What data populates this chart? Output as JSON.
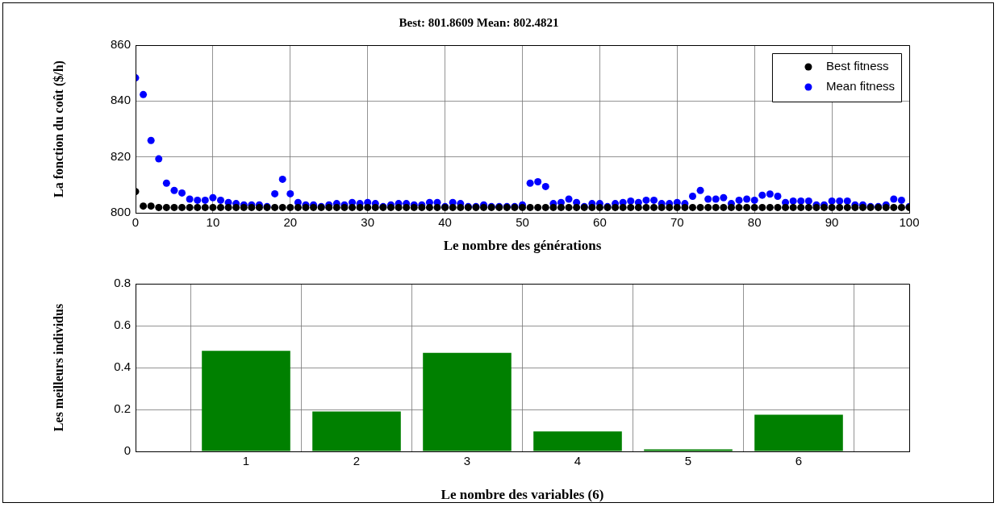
{
  "chart_data": [
    {
      "type": "scatter",
      "title": "Best: 801.8609 Mean: 802.4821",
      "xlabel": "Le nombre des générations",
      "ylabel": "La fonction du coût ($/h)",
      "x": [
        0,
        1,
        2,
        3,
        4,
        5,
        6,
        7,
        8,
        9,
        10,
        11,
        12,
        13,
        14,
        15,
        16,
        17,
        18,
        19,
        20,
        21,
        22,
        23,
        24,
        25,
        26,
        27,
        28,
        29,
        30,
        31,
        32,
        33,
        34,
        35,
        36,
        37,
        38,
        39,
        40,
        41,
        42,
        43,
        44,
        45,
        46,
        47,
        48,
        49,
        50,
        51,
        52,
        53,
        54,
        55,
        56,
        57,
        58,
        59,
        60,
        61,
        62,
        63,
        64,
        65,
        66,
        67,
        68,
        69,
        70,
        71,
        72,
        73,
        74,
        75,
        76,
        77,
        78,
        79,
        80,
        81,
        82,
        83,
        84,
        85,
        86,
        87,
        88,
        89,
        90,
        91,
        92,
        93,
        94,
        95,
        96,
        97,
        98,
        99,
        100
      ],
      "series": [
        {
          "name": "Best fitness",
          "color": "#000000",
          "values": [
            807.6,
            802.4,
            802.4,
            801.9,
            801.9,
            801.9,
            801.9,
            801.9,
            801.9,
            801.9,
            801.9,
            801.9,
            801.9,
            801.9,
            801.9,
            801.9,
            801.9,
            801.9,
            801.9,
            801.9,
            801.9,
            801.9,
            801.9,
            801.9,
            801.9,
            801.9,
            801.9,
            801.9,
            801.9,
            801.9,
            801.9,
            801.9,
            801.9,
            801.9,
            801.9,
            801.9,
            801.9,
            801.9,
            801.9,
            801.9,
            801.9,
            801.9,
            801.9,
            801.9,
            801.9,
            801.9,
            801.9,
            801.9,
            801.9,
            801.9,
            801.9,
            801.9,
            801.9,
            801.9,
            801.9,
            801.9,
            801.9,
            801.9,
            801.9,
            801.9,
            801.9,
            801.9,
            801.9,
            801.9,
            801.9,
            801.9,
            801.9,
            801.9,
            801.9,
            801.9,
            801.9,
            801.9,
            801.9,
            801.9,
            801.9,
            801.9,
            801.9,
            801.9,
            801.9,
            801.9,
            801.9,
            801.9,
            801.9,
            801.9,
            801.9,
            801.9,
            801.9,
            801.9,
            801.9,
            801.9,
            801.9,
            801.9,
            801.9,
            801.9,
            801.9,
            801.9,
            801.9,
            801.9,
            801.9,
            801.9,
            801.9
          ]
        },
        {
          "name": "Mean fitness",
          "color": "#0000ff",
          "values": [
            848.3,
            842.3,
            825.9,
            819.3,
            810.6,
            808.0,
            807.1,
            804.9,
            804.5,
            804.5,
            805.4,
            804.5,
            803.7,
            803.3,
            802.8,
            802.8,
            802.8,
            802.2,
            806.8,
            812.0,
            806.8,
            803.7,
            802.8,
            802.8,
            802.2,
            802.8,
            803.3,
            802.8,
            803.7,
            803.3,
            803.7,
            803.3,
            802.2,
            802.8,
            803.3,
            803.3,
            802.8,
            802.8,
            803.7,
            803.7,
            802.2,
            803.7,
            803.3,
            802.2,
            802.2,
            802.8,
            802.2,
            802.2,
            802.2,
            802.2,
            802.8,
            810.6,
            811.1,
            809.4,
            803.3,
            803.7,
            804.9,
            803.7,
            802.2,
            803.3,
            803.3,
            802.2,
            803.3,
            803.7,
            804.2,
            803.7,
            804.5,
            804.5,
            803.3,
            803.3,
            803.7,
            803.3,
            805.9,
            808.0,
            804.9,
            804.9,
            805.4,
            803.3,
            804.5,
            804.9,
            804.5,
            806.3,
            806.7,
            805.9,
            803.7,
            804.2,
            804.2,
            804.2,
            802.8,
            802.8,
            804.2,
            804.2,
            804.2,
            802.8,
            802.8,
            802.2,
            802.2,
            802.8,
            804.9,
            804.5,
            802.2
          ]
        }
      ],
      "xlim": [
        0,
        100
      ],
      "xticks": [
        0,
        10,
        20,
        30,
        40,
        50,
        60,
        70,
        80,
        90,
        100
      ],
      "ylim": [
        800,
        860
      ],
      "yticks": [
        800,
        820,
        840,
        860
      ],
      "grid": true,
      "legend": "top right",
      "marker": "circle"
    },
    {
      "type": "bar",
      "xlabel": "Le nombre des variables (6)",
      "ylabel": "Les meilleurs individus",
      "x": [
        1,
        2,
        3,
        4,
        5,
        6
      ],
      "values": [
        0.48,
        0.19,
        0.47,
        0.095,
        0.01,
        0.175
      ],
      "color": "#008000",
      "xlim": [
        0,
        7
      ],
      "xticks": [
        1,
        2,
        3,
        4,
        5,
        6
      ],
      "ylim": [
        0,
        0.8
      ],
      "yticks": [
        0,
        0.2,
        0.4,
        0.6,
        0.8
      ],
      "grid": true
    }
  ]
}
